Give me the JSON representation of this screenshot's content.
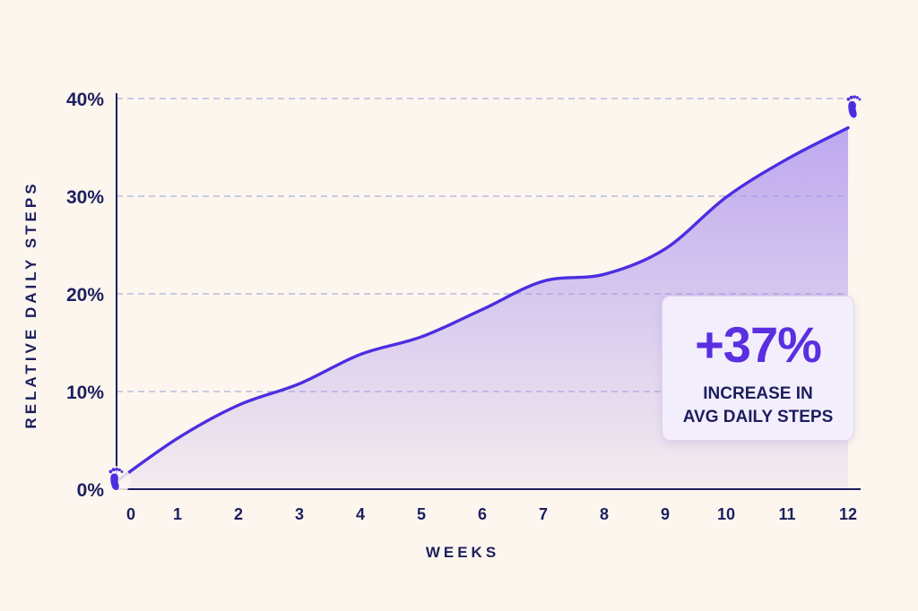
{
  "chart_data": {
    "type": "area",
    "xlabel": "WEEKS",
    "ylabel": "RELATIVE DAILY STEPS",
    "x": [
      0,
      1,
      2,
      3,
      4,
      5,
      6,
      7,
      8,
      9,
      10,
      11,
      12
    ],
    "series": [
      {
        "values": [
          0.8,
          5.2,
          8.6,
          10.8,
          13.8,
          15.6,
          18.4,
          21.3,
          22.0,
          24.6,
          29.9,
          33.8,
          37.0
        ]
      }
    ],
    "xlim": [
      0,
      12
    ],
    "ylim": [
      0,
      40
    ],
    "yticks": [
      0,
      10,
      20,
      30,
      40
    ],
    "ytick_labels": [
      "0%",
      "10%",
      "20%",
      "30%",
      "40%"
    ],
    "xtick_labels": [
      "0",
      "1",
      "2",
      "3",
      "4",
      "5",
      "6",
      "7",
      "8",
      "9",
      "10",
      "11",
      "12"
    ],
    "grid": true,
    "line_color": "#4b2ee0",
    "fill_color": "#a98ef0",
    "marker_icon": "footprint-icon",
    "annotation": {
      "value": "+37%",
      "line1": "INCREASE IN",
      "line2": "AVG DAILY STEPS"
    }
  }
}
